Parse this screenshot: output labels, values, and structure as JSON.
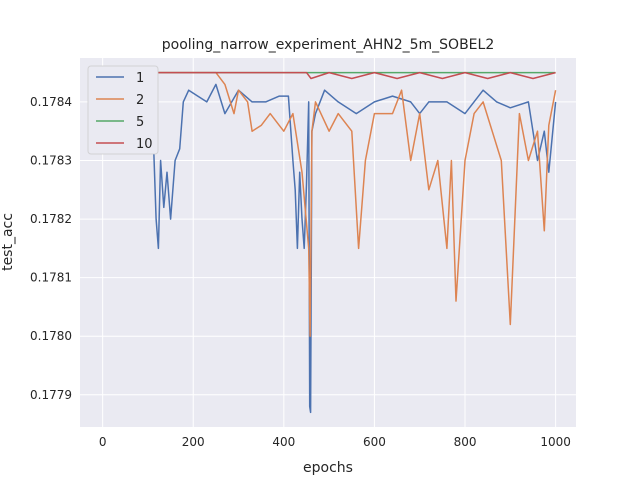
{
  "chart_data": {
    "type": "line",
    "title": "pooling_narrow_experiment_AHN2_5m_SOBEL2",
    "xlabel": "epochs",
    "ylabel": "test_acc",
    "xlim": [
      -50,
      1045
    ],
    "ylim": [
      0.177845,
      0.178475
    ],
    "xticks": [
      0,
      200,
      400,
      600,
      800,
      1000
    ],
    "xtick_labels": [
      "0",
      "200",
      "400",
      "600",
      "800",
      "1000"
    ],
    "yticks": [
      0.1779,
      0.178,
      0.1781,
      0.1782,
      0.1783,
      0.1784
    ],
    "ytick_labels": [
      "0.1779",
      "0.1780",
      "0.1781",
      "0.1782",
      "0.1783",
      "0.1784"
    ],
    "grid": true,
    "legend_position": "top-left",
    "series": [
      {
        "name": "1",
        "color": "#4c72b0",
        "x": [
          0,
          80,
          100,
          110,
          118,
          123,
          128,
          135,
          142,
          150,
          160,
          170,
          178,
          190,
          210,
          230,
          250,
          270,
          300,
          330,
          360,
          390,
          410,
          420,
          425,
          430,
          435,
          440,
          445,
          450,
          455,
          457,
          459,
          462,
          470,
          490,
          520,
          560,
          600,
          640,
          680,
          700,
          720,
          760,
          800,
          840,
          870,
          900,
          940,
          960,
          975,
          985,
          1000
        ],
        "values": [
          0.17845,
          0.17845,
          0.17842,
          0.17838,
          0.1782,
          0.17815,
          0.1783,
          0.17822,
          0.17828,
          0.1782,
          0.1783,
          0.17832,
          0.1784,
          0.17842,
          0.17841,
          0.1784,
          0.17843,
          0.17838,
          0.17842,
          0.1784,
          0.1784,
          0.17841,
          0.17841,
          0.1783,
          0.17825,
          0.17815,
          0.17828,
          0.1782,
          0.17815,
          0.17826,
          0.1784,
          0.17788,
          0.17787,
          0.17835,
          0.17838,
          0.17842,
          0.1784,
          0.17838,
          0.1784,
          0.17841,
          0.1784,
          0.17838,
          0.1784,
          0.1784,
          0.17838,
          0.17842,
          0.1784,
          0.17839,
          0.1784,
          0.1783,
          0.17835,
          0.17828,
          0.1784
        ]
      },
      {
        "name": "2",
        "color": "#dd8452",
        "x": [
          0,
          200,
          250,
          270,
          290,
          300,
          320,
          330,
          350,
          370,
          390,
          400,
          420,
          440,
          455,
          458,
          462,
          470,
          500,
          520,
          550,
          565,
          580,
          600,
          640,
          660,
          680,
          700,
          720,
          740,
          760,
          770,
          780,
          800,
          820,
          840,
          860,
          880,
          900,
          920,
          940,
          960,
          975,
          985,
          1000
        ],
        "values": [
          0.17845,
          0.17845,
          0.17845,
          0.17843,
          0.17838,
          0.17842,
          0.1784,
          0.17835,
          0.17836,
          0.17838,
          0.17836,
          0.17835,
          0.17838,
          0.17828,
          0.17815,
          0.178,
          0.17835,
          0.1784,
          0.17835,
          0.17838,
          0.17835,
          0.17815,
          0.1783,
          0.17838,
          0.17838,
          0.17842,
          0.1783,
          0.17838,
          0.17825,
          0.1783,
          0.17815,
          0.1783,
          0.17806,
          0.1783,
          0.17838,
          0.1784,
          0.17835,
          0.1783,
          0.17802,
          0.17838,
          0.1783,
          0.17835,
          0.17818,
          0.17836,
          0.17842
        ]
      },
      {
        "name": "5",
        "color": "#55a868",
        "x": [
          0,
          1000
        ],
        "values": [
          0.17845,
          0.17845
        ]
      },
      {
        "name": "10",
        "color": "#c44e52",
        "x": [
          0,
          450,
          460,
          500,
          550,
          600,
          650,
          700,
          750,
          800,
          850,
          900,
          950,
          1000
        ],
        "values": [
          0.17845,
          0.17845,
          0.17844,
          0.17845,
          0.17844,
          0.17845,
          0.17844,
          0.17845,
          0.17844,
          0.17845,
          0.17844,
          0.17845,
          0.17844,
          0.17845
        ]
      }
    ]
  }
}
